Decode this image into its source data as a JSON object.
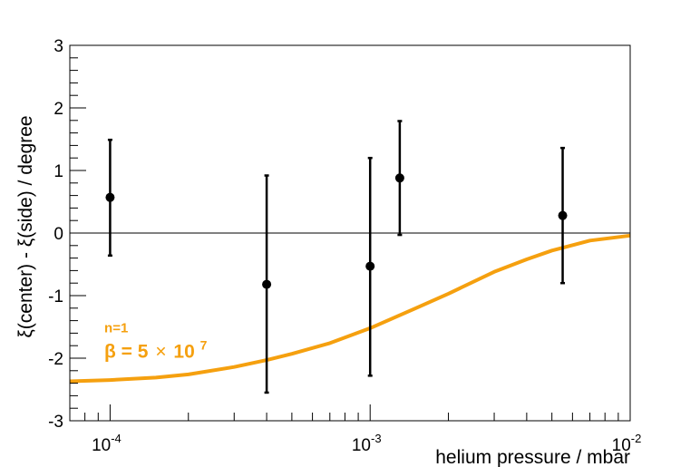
{
  "chart_data": {
    "type": "scatter",
    "title": "",
    "xlabel": "helium pressure / mbar",
    "ylabel": "ξ(center) - ξ(side) / degree",
    "x_scale": "log",
    "xlim": [
      7e-05,
      0.01
    ],
    "ylim": [
      -3,
      3
    ],
    "x_major_ticks": [
      0.0001,
      0.001,
      0.01
    ],
    "x_tick_labels": [
      {
        "base": "10",
        "exp": "-4"
      },
      {
        "base": "10",
        "exp": "-3"
      },
      {
        "base": "10",
        "exp": "-2"
      }
    ],
    "y_ticks": [
      -3,
      -2,
      -1,
      0,
      1,
      2,
      3
    ],
    "y_tick_labels": [
      "-3",
      "-2",
      "-1",
      "0",
      "1",
      "2",
      "3"
    ],
    "zero_line": true,
    "grid": false,
    "series": [
      {
        "kind": "points_with_errors",
        "color": "#000000",
        "points": [
          {
            "x": 0.0001,
            "y": 0.57,
            "err_low": 0.93,
            "err_high": 0.92
          },
          {
            "x": 0.0004,
            "y": -0.82,
            "err_low": 1.73,
            "err_high": 1.74
          },
          {
            "x": 0.001,
            "y": -0.53,
            "err_low": 1.75,
            "err_high": 1.73
          },
          {
            "x": 0.0013,
            "y": 0.88,
            "err_low": 0.91,
            "err_high": 0.91
          },
          {
            "x": 0.0055,
            "y": 0.28,
            "err_low": 1.08,
            "err_high": 1.08
          }
        ]
      },
      {
        "kind": "curve",
        "color": "#F5A00F",
        "x": [
          7e-05,
          0.0001,
          0.00015,
          0.0002,
          0.0003,
          0.0004,
          0.0005,
          0.0007,
          0.001,
          0.0015,
          0.002,
          0.003,
          0.004,
          0.005,
          0.007,
          0.01
        ],
        "y": [
          -2.37,
          -2.35,
          -2.31,
          -2.26,
          -2.14,
          -2.03,
          -1.93,
          -1.76,
          -1.52,
          -1.2,
          -0.97,
          -0.62,
          -0.42,
          -0.28,
          -0.12,
          -0.04
        ]
      }
    ],
    "annotation": {
      "line1": "n=1",
      "line2_prefix": "β = 5",
      "line2_times": "×",
      "line2_base": "10",
      "line2_exp": "7",
      "color": "#F5A00F",
      "anchor": {
        "x": 9.5e-05,
        "y": -1.5
      }
    }
  }
}
